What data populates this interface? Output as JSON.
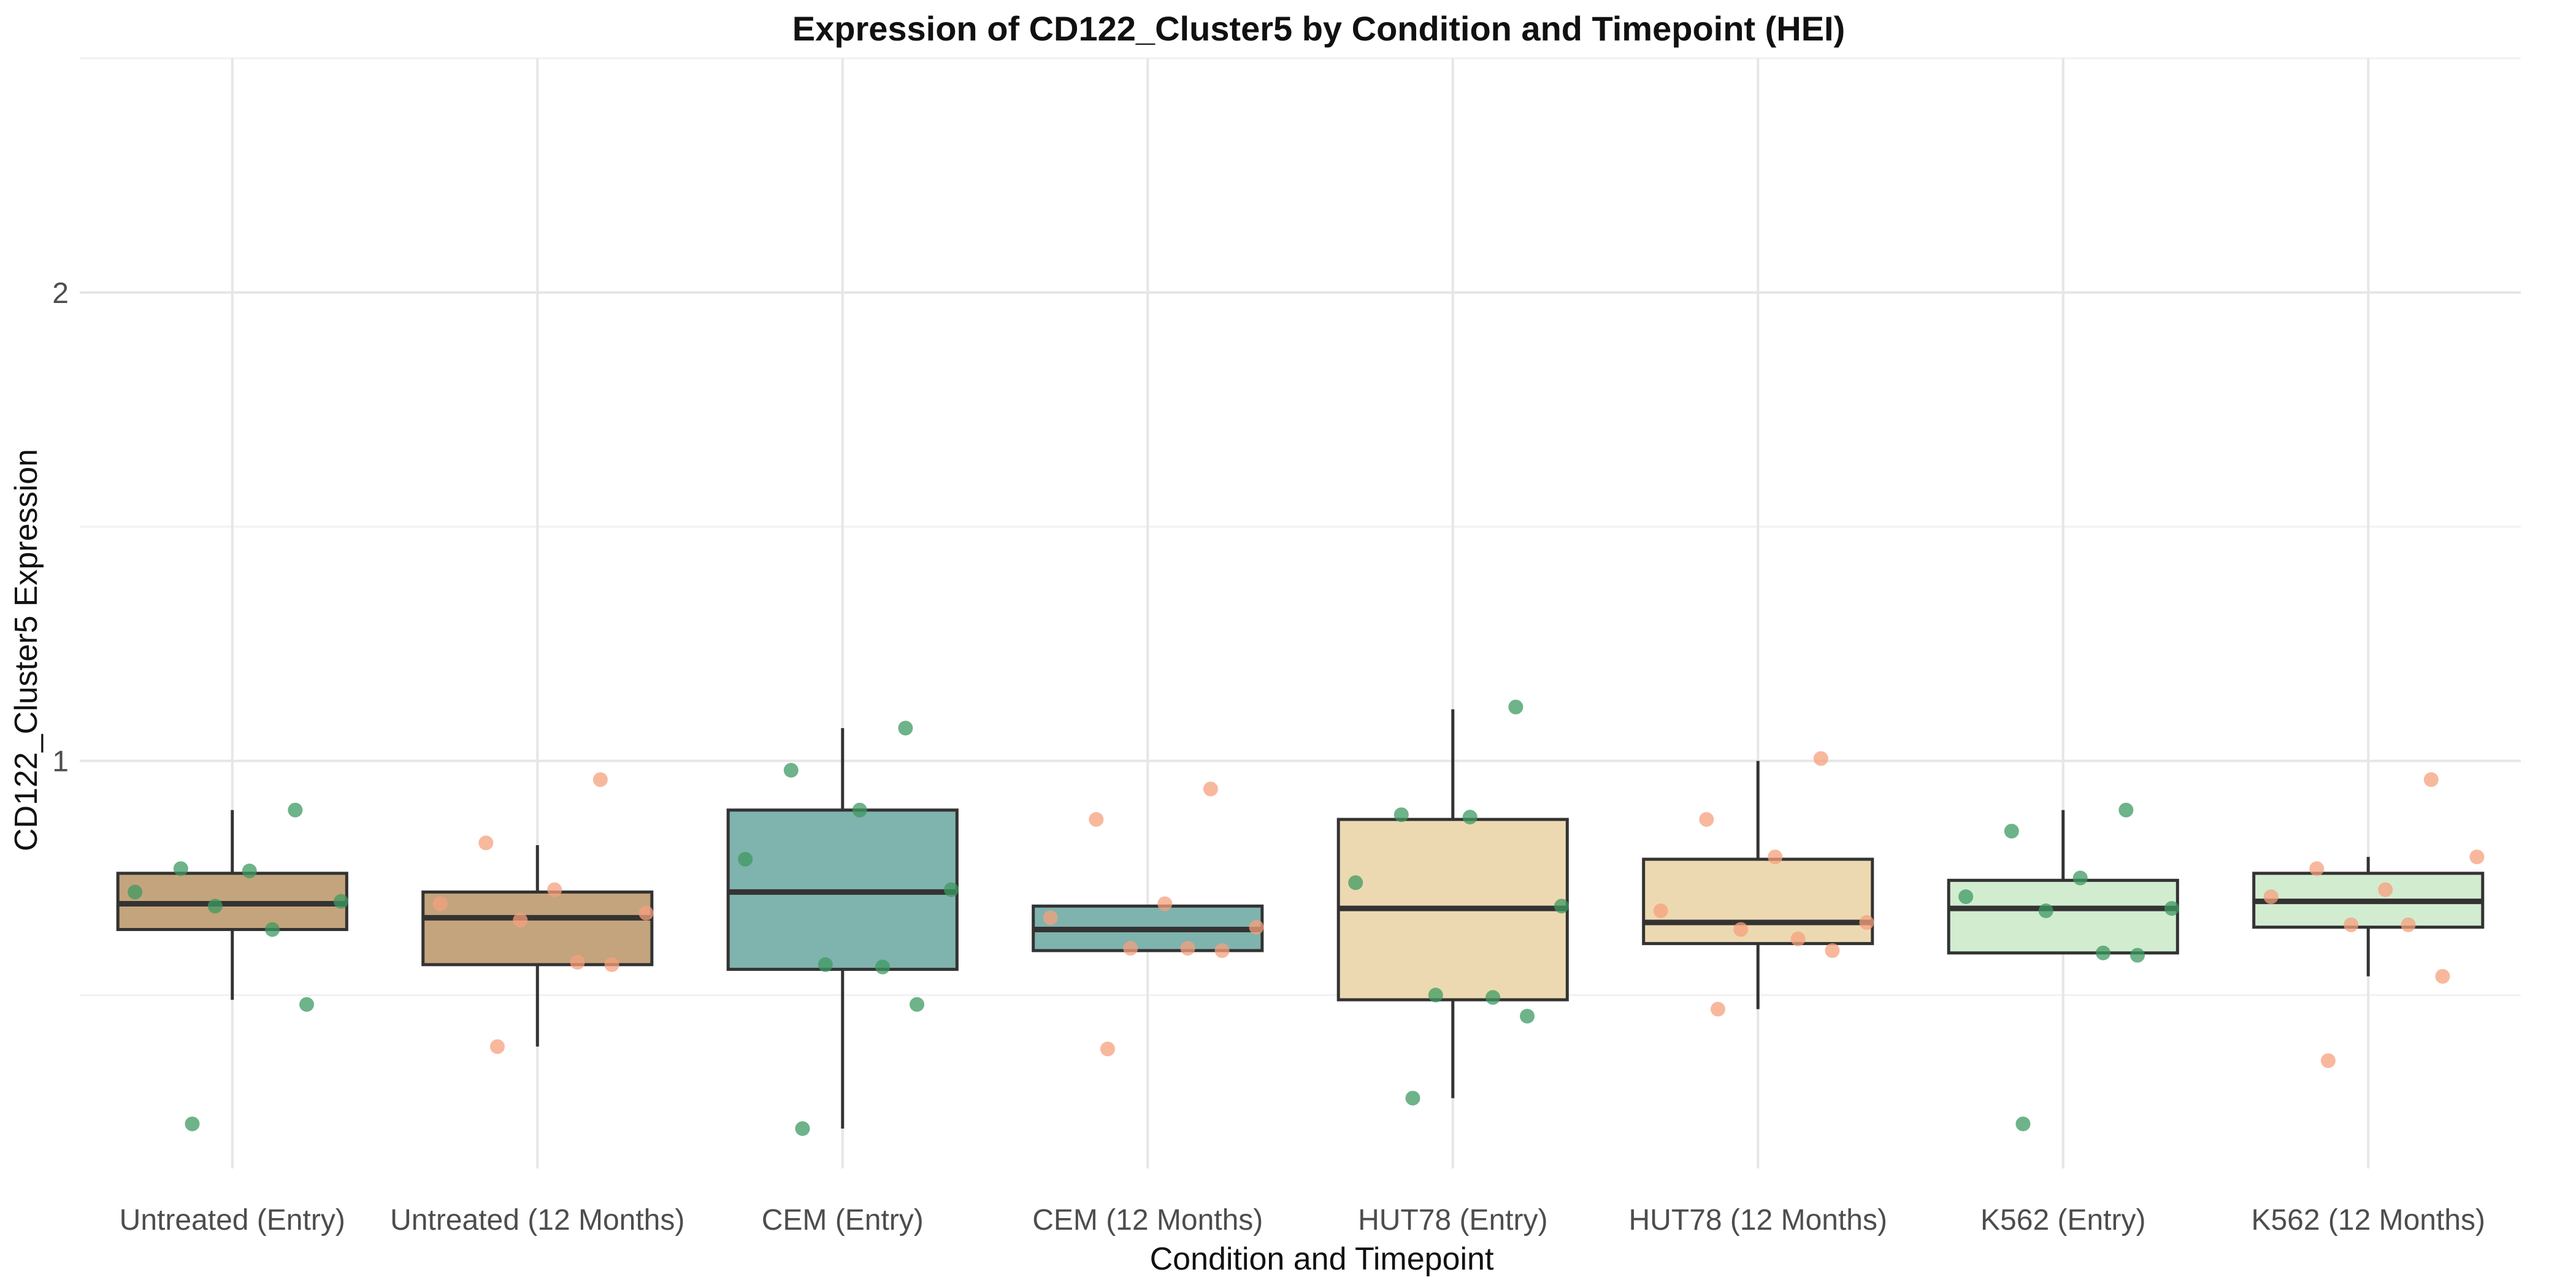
{
  "chart_data": {
    "type": "box",
    "title": "Expression of CD122_Cluster5 by Condition and Timepoint (HEI)",
    "xlabel": "Condition and Timepoint",
    "ylabel": "CD122_Cluster5 Expression",
    "ylim": [
      0.13,
      2.5
    ],
    "yticks": [
      1,
      2
    ],
    "grid": true,
    "legend": "none",
    "categories": [
      "Untreated (Entry)",
      "Untreated (12 Months)",
      "CEM (Entry)",
      "CEM (12 Months)",
      "HUT78 (Entry)",
      "HUT78 (12 Months)",
      "K562 (Entry)",
      "K562 (12 Months)"
    ],
    "boxes": [
      {
        "q1": 0.64,
        "median": 0.695,
        "q3": 0.76,
        "whisker_low": 0.49,
        "whisker_high": 0.895,
        "fill": "#c4a47c",
        "points": [
          0.895,
          0.77,
          0.765,
          0.72,
          0.7,
          0.69,
          0.64,
          0.48,
          0.225
        ]
      },
      {
        "q1": 0.565,
        "median": 0.665,
        "q3": 0.72,
        "whisker_low": 0.39,
        "whisker_high": 0.82,
        "fill": "#c4a47c",
        "points": [
          0.96,
          0.825,
          0.725,
          0.695,
          0.675,
          0.66,
          0.57,
          0.565,
          0.39
        ]
      },
      {
        "q1": 0.555,
        "median": 0.72,
        "q3": 0.895,
        "whisker_low": 0.215,
        "whisker_high": 1.07,
        "fill": "#7fb3ad",
        "points": [
          1.07,
          0.98,
          0.895,
          0.79,
          0.725,
          0.565,
          0.56,
          0.48,
          0.215
        ]
      },
      {
        "q1": 0.595,
        "median": 0.64,
        "q3": 0.69,
        "whisker_low": 0.595,
        "whisker_high": 0.69,
        "fill": "#7fb3ad",
        "points": [
          0.94,
          0.875,
          0.695,
          0.665,
          0.645,
          0.6,
          0.6,
          0.595,
          0.385
        ]
      },
      {
        "q1": 0.49,
        "median": 0.685,
        "q3": 0.875,
        "whisker_low": 0.28,
        "whisker_high": 1.11,
        "fill": "#edd9b1",
        "points": [
          1.115,
          0.885,
          0.88,
          0.74,
          0.69,
          0.5,
          0.495,
          0.455,
          0.28
        ]
      },
      {
        "q1": 0.61,
        "median": 0.655,
        "q3": 0.79,
        "whisker_low": 0.47,
        "whisker_high": 1.0,
        "fill": "#edd9b1",
        "points": [
          1.005,
          0.875,
          0.795,
          0.68,
          0.655,
          0.64,
          0.62,
          0.595,
          0.47
        ]
      },
      {
        "q1": 0.59,
        "median": 0.685,
        "q3": 0.745,
        "whisker_low": 0.59,
        "whisker_high": 0.895,
        "fill": "#d2ecd0",
        "points": [
          0.895,
          0.85,
          0.75,
          0.71,
          0.685,
          0.68,
          0.59,
          0.585,
          0.225
        ]
      },
      {
        "q1": 0.645,
        "median": 0.7,
        "q3": 0.76,
        "whisker_low": 0.54,
        "whisker_high": 0.795,
        "fill": "#d2ecd0",
        "points": [
          0.96,
          0.77,
          0.725,
          0.71,
          0.795,
          0.65,
          0.65,
          0.54,
          0.36
        ]
      }
    ],
    "point_colors": {
      "entry": "#3d9a62",
      "twelve_months": "#f5a07d"
    }
  }
}
